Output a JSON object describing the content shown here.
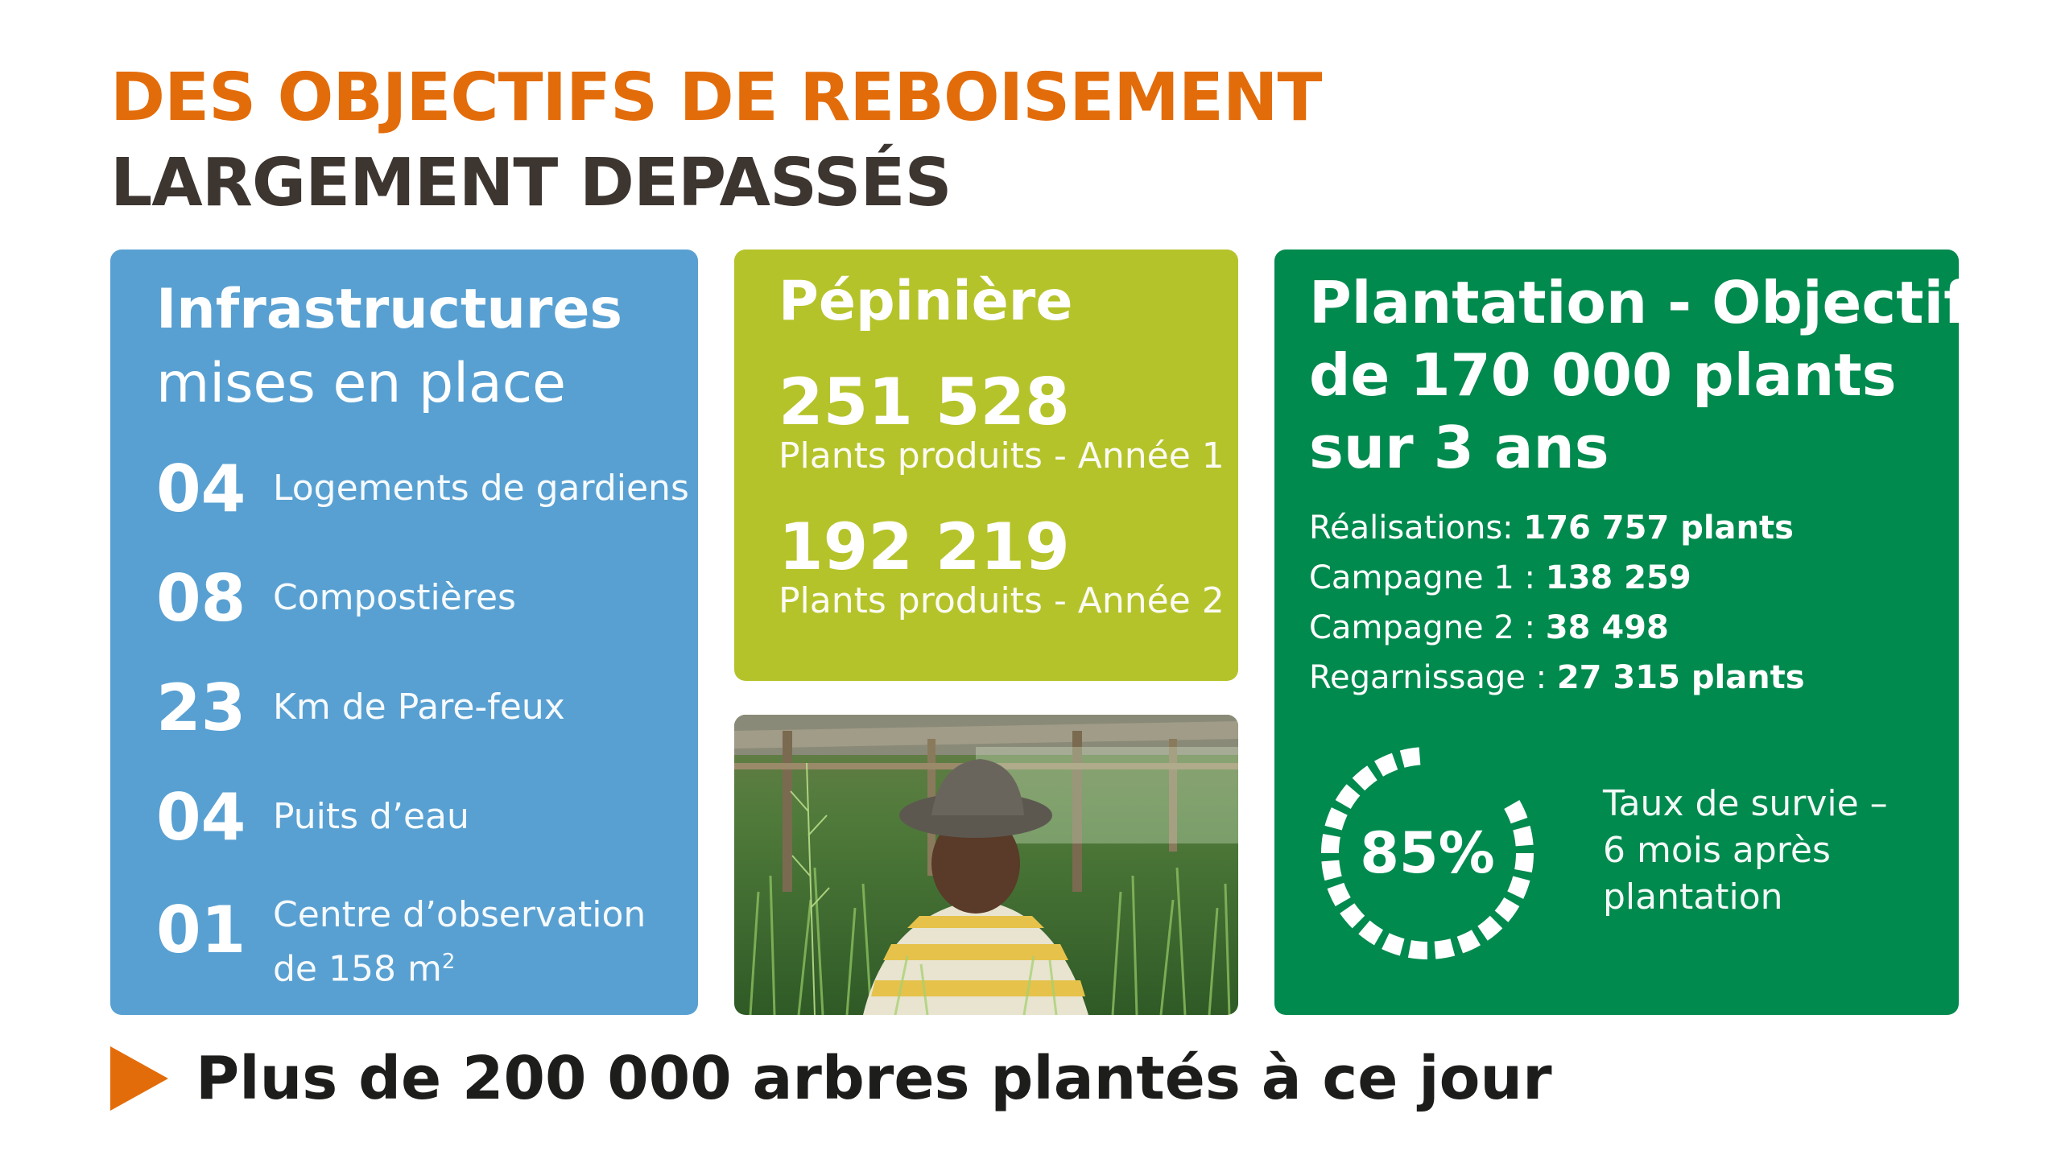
{
  "colors": {
    "orange": "#e36c0a",
    "dark": "#3d3530",
    "blue": "#58a0d2",
    "olive": "#b5c32a",
    "green": "#008a4e",
    "text_dark": "#1d1d1b"
  },
  "header": {
    "line1": "DES OBJECTIFS DE REBOISEMENT",
    "line2": "LARGEMENT DEPASSÉS"
  },
  "infrastructures": {
    "title": "Infrastructures",
    "subtitle": "mises en place",
    "items": [
      {
        "num": "04",
        "label": "Logements de gardiens"
      },
      {
        "num": "08",
        "label": "Compostières"
      },
      {
        "num": "23",
        "label": "Km de Pare-feux"
      },
      {
        "num": "04",
        "label": "Puits d’eau"
      },
      {
        "num": "01",
        "label": "Centre d’observation",
        "label2": "de 158 m",
        "sup": "2"
      }
    ]
  },
  "pepiniere": {
    "title": "Pépinière",
    "num1": "251 528",
    "label1": "Plants produits - Année 1",
    "num2": "192 219",
    "label2": "Plants produits - Année 2"
  },
  "photo": {
    "icon": "person-in-nursery-photo"
  },
  "plantation": {
    "title_line1": "Plantation - Objectif",
    "title_line2": "de 170 000 plants",
    "title_line3": "sur 3 ans",
    "rows": [
      {
        "label": "Réalisations: ",
        "value": "176 757 plants"
      },
      {
        "label": "Campagne 1 : ",
        "value": "138 259"
      },
      {
        "label": "Campagne 2 : ",
        "value": "38 498"
      },
      {
        "label": "Regarnissage : ",
        "value": "27 315 plants"
      }
    ],
    "survival_value": 0.85,
    "survival_pct": "85%",
    "survival_line1": "Taux de survie –",
    "survival_line2": "6 mois après",
    "survival_line3": "plantation"
  },
  "footer": {
    "text": "Plus de 200 000 arbres plantés à ce jour"
  }
}
